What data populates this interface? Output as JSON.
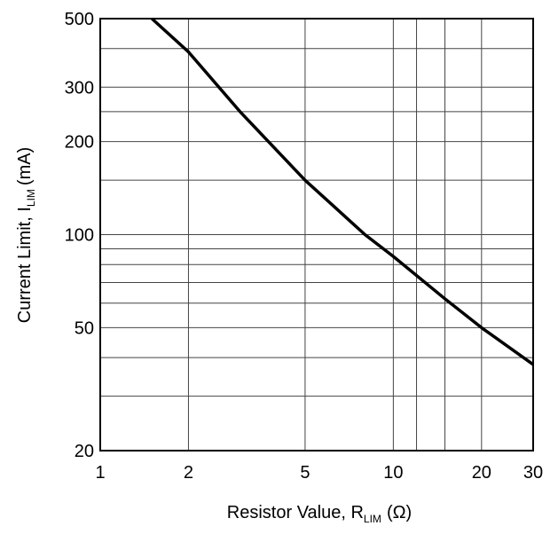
{
  "chart_data": {
    "type": "line",
    "log_x": true,
    "log_y": true,
    "grid": true,
    "xlabel": {
      "text": "Resistor Value, R",
      "sub": "LIM",
      "unit": "(Ω)"
    },
    "ylabel": {
      "text": "Current Limit, I",
      "sub": "LIM",
      "unit": "(mA)"
    },
    "xlim": [
      1,
      30
    ],
    "ylim": [
      20,
      500
    ],
    "xticks": [
      1,
      2,
      5,
      10,
      20,
      30
    ],
    "yticks": [
      20,
      50,
      100,
      200,
      300,
      500
    ],
    "xgrid": [
      12,
      15
    ],
    "ygrid": [
      30,
      40,
      60,
      70,
      80,
      90,
      150,
      250,
      400
    ],
    "series": [
      {
        "color": "#000000",
        "x": [
          1.5,
          2,
          3,
          5,
          8,
          10,
          15,
          20,
          30
        ],
        "values": [
          500,
          390,
          250,
          150,
          100,
          85,
          62,
          50,
          38
        ]
      }
    ]
  }
}
